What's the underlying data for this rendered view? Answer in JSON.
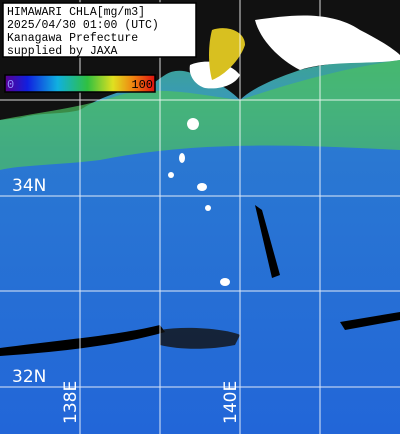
{
  "header": {
    "lines": [
      "HIMAWARI CHLA[mg/m3]",
      "2025/04/30 01:00 (UTC)",
      "Kanagawa Prefecture",
      "supplied by JAXA"
    ]
  },
  "colorbar": {
    "min": 0,
    "max": 100
  },
  "grid_labels": {
    "lat": [
      "34N",
      "32N"
    ],
    "lon": [
      "138E",
      "140E"
    ]
  }
}
